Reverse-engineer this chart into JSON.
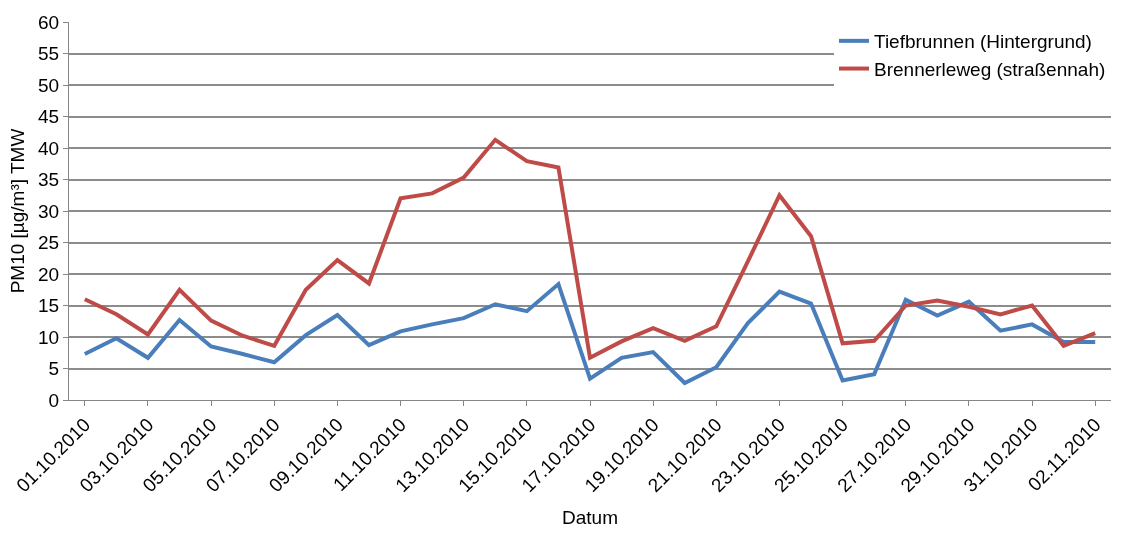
{
  "chart_data": {
    "type": "line",
    "xlabel": "Datum",
    "ylabel": "PM10 [µg/m³] TMW",
    "categories": [
      "01.10.2010",
      null,
      "03.10.2010",
      null,
      "05.10.2010",
      null,
      "07.10.2010",
      null,
      "09.10.2010",
      null,
      "11.10.2010",
      null,
      "13.10.2010",
      null,
      "15.10.2010",
      null,
      "17.10.2010",
      null,
      "19.10.2010",
      null,
      "21.10.2010",
      null,
      "23.10.2010",
      null,
      "25.10.2010",
      null,
      "27.10.2010",
      null,
      "29.10.2010",
      null,
      "31.10.2010",
      null,
      "02.11.2010"
    ],
    "series": [
      {
        "name": "Tiefbrunnen (Hintergrund)",
        "color": "#4a7ebb",
        "values": [
          7.3,
          9.8,
          6.7,
          12.7,
          8.5,
          7.3,
          6,
          10.3,
          13.5,
          8.7,
          10.9,
          12,
          13,
          15.2,
          14.1,
          18.4,
          3.4,
          6.7,
          7.6,
          2.7,
          5.2,
          12.2,
          17.2,
          15.3,
          3.1,
          4.1,
          15.9,
          13.4,
          15.6,
          11,
          12,
          9.2,
          9.2
        ]
      },
      {
        "name": "Brennerleweg (straßennah)",
        "color": "#be4b48",
        "values": [
          16,
          13.6,
          10.4,
          17.5,
          12.6,
          10.2,
          8.6,
          17.5,
          22.2,
          18.5,
          32,
          32.8,
          35.3,
          41.3,
          37.9,
          36.9,
          6.7,
          9.3,
          11.4,
          9.4,
          11.7,
          22,
          32.5,
          26,
          9,
          9.4,
          15,
          15.8,
          14.8,
          13.6,
          15,
          8.6,
          10.6
        ]
      }
    ],
    "ylim": [
      0,
      60
    ],
    "yticks": [
      0,
      5,
      10,
      15,
      20,
      25,
      30,
      35,
      40,
      45,
      50,
      55,
      60
    ],
    "grid": "y",
    "legend": "top right",
    "marker": "none",
    "line_style": "solid"
  }
}
